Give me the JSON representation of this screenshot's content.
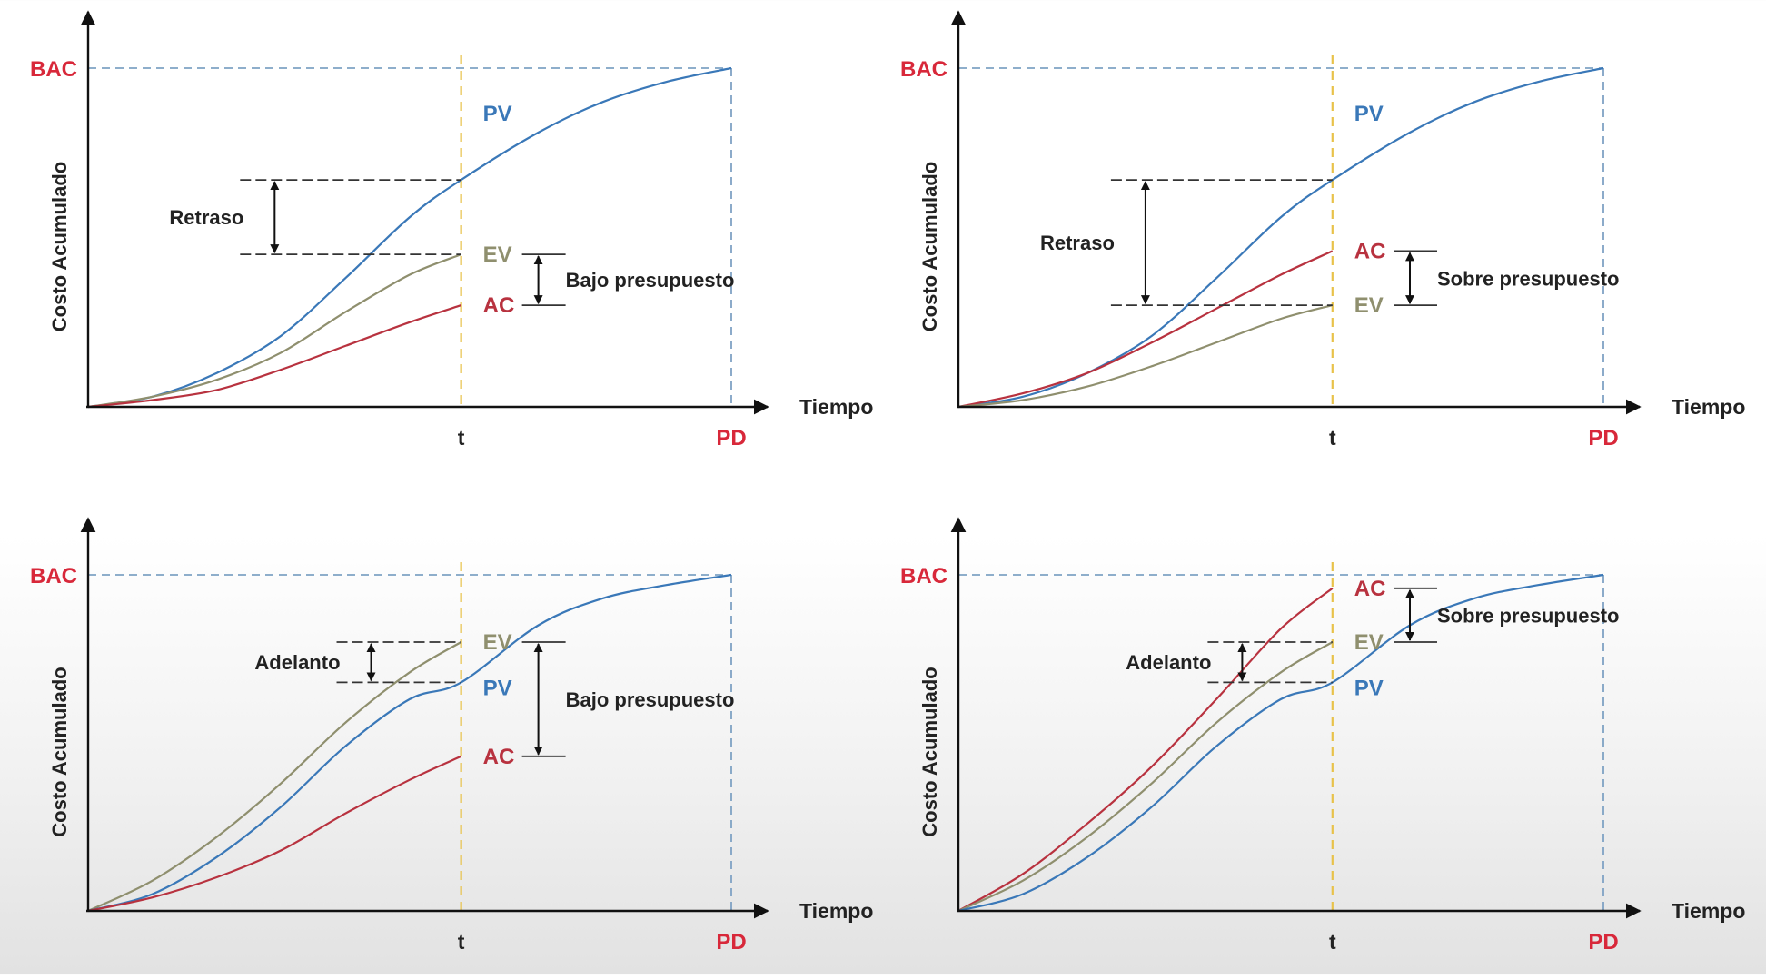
{
  "colors": {
    "pv": "#3a78b8",
    "ev": "#8f8f6e",
    "ac": "#b8323f",
    "bac_label": "#d8283a",
    "pd_label": "#d8283a",
    "status_line": "#e8c24a",
    "reference_line": "#7fa2c4",
    "axis": "#111111",
    "annotation": "#333333"
  },
  "icons": {
    "axis_arrow": "arrow-head-icon",
    "dimension_arrow": "double-arrow-icon"
  },
  "chart_data": [
    {
      "type": "line",
      "ylabel": "Costo Acumulado",
      "xlabel": "Tiempo",
      "y_ref_label": "BAC",
      "x_status_label": "t",
      "x_end_label": "PD",
      "xlim": [
        0,
        1
      ],
      "ylim": [
        0,
        1
      ],
      "status_x": 0.58,
      "series": [
        {
          "name": "PV",
          "x": [
            0,
            0.1,
            0.2,
            0.3,
            0.4,
            0.5,
            0.58,
            0.7,
            0.8,
            0.9,
            1.0
          ],
          "values": [
            0,
            0.03,
            0.1,
            0.21,
            0.38,
            0.56,
            0.67,
            0.81,
            0.9,
            0.96,
            1.0
          ]
        },
        {
          "name": "EV",
          "x": [
            0,
            0.1,
            0.2,
            0.3,
            0.4,
            0.5,
            0.58
          ],
          "values": [
            0,
            0.03,
            0.08,
            0.16,
            0.28,
            0.39,
            0.45
          ]
        },
        {
          "name": "AC",
          "x": [
            0,
            0.1,
            0.2,
            0.3,
            0.4,
            0.5,
            0.58
          ],
          "values": [
            0,
            0.02,
            0.05,
            0.11,
            0.18,
            0.25,
            0.3
          ]
        }
      ],
      "annotations": [
        {
          "text": "Retraso",
          "from": 0.67,
          "to": 0.45,
          "side": "left",
          "position": 0.29
        },
        {
          "text": "Bajo presupuesto",
          "from": 0.45,
          "to": 0.3,
          "side": "right",
          "position": 0.7
        }
      ]
    },
    {
      "type": "line",
      "ylabel": "Costo Acumulado",
      "xlabel": "Tiempo",
      "y_ref_label": "BAC",
      "x_status_label": "t",
      "x_end_label": "PD",
      "xlim": [
        0,
        1
      ],
      "ylim": [
        0,
        1
      ],
      "status_x": 0.58,
      "series": [
        {
          "name": "PV",
          "x": [
            0,
            0.1,
            0.2,
            0.3,
            0.4,
            0.5,
            0.58,
            0.7,
            0.8,
            0.9,
            1.0
          ],
          "values": [
            0,
            0.03,
            0.1,
            0.21,
            0.38,
            0.56,
            0.67,
            0.81,
            0.9,
            0.96,
            1.0
          ]
        },
        {
          "name": "AC",
          "x": [
            0,
            0.1,
            0.2,
            0.3,
            0.4,
            0.5,
            0.58
          ],
          "values": [
            0,
            0.04,
            0.1,
            0.19,
            0.29,
            0.39,
            0.46
          ]
        },
        {
          "name": "EV",
          "x": [
            0,
            0.1,
            0.2,
            0.3,
            0.4,
            0.5,
            0.58
          ],
          "values": [
            0,
            0.02,
            0.06,
            0.12,
            0.19,
            0.26,
            0.3
          ]
        }
      ],
      "annotations": [
        {
          "text": "Retraso",
          "from": 0.67,
          "to": 0.3,
          "side": "left",
          "position": 0.29
        },
        {
          "text": "Sobre presupuesto",
          "from": 0.46,
          "to": 0.3,
          "side": "right",
          "position": 0.7
        }
      ]
    },
    {
      "type": "line",
      "ylabel": "Costo Acumulado",
      "xlabel": "Tiempo",
      "y_ref_label": "BAC",
      "x_status_label": "t",
      "x_end_label": "PD",
      "xlim": [
        0,
        1
      ],
      "ylim": [
        0,
        1
      ],
      "status_x": 0.58,
      "series": [
        {
          "name": "EV",
          "x": [
            0,
            0.1,
            0.2,
            0.3,
            0.4,
            0.5,
            0.58
          ],
          "values": [
            0,
            0.09,
            0.22,
            0.38,
            0.56,
            0.71,
            0.8
          ]
        },
        {
          "name": "PV",
          "x": [
            0,
            0.1,
            0.2,
            0.3,
            0.4,
            0.5,
            0.58,
            0.7,
            0.8,
            0.9,
            1.0
          ],
          "values": [
            0,
            0.05,
            0.16,
            0.31,
            0.49,
            0.63,
            0.68,
            0.85,
            0.93,
            0.97,
            1.0
          ]
        },
        {
          "name": "AC",
          "x": [
            0,
            0.1,
            0.2,
            0.3,
            0.4,
            0.5,
            0.58
          ],
          "values": [
            0,
            0.04,
            0.1,
            0.18,
            0.29,
            0.39,
            0.46
          ]
        }
      ],
      "annotations": [
        {
          "text": "Adelanto",
          "from": 0.8,
          "to": 0.68,
          "side": "left",
          "position": 0.44
        },
        {
          "text": "Bajo presupuesto",
          "from": 0.8,
          "to": 0.46,
          "side": "right",
          "position": 0.7
        }
      ]
    },
    {
      "type": "line",
      "ylabel": "Costo Acumulado",
      "xlabel": "Tiempo",
      "y_ref_label": "BAC",
      "x_status_label": "t",
      "x_end_label": "PD",
      "xlim": [
        0,
        1
      ],
      "ylim": [
        0,
        1
      ],
      "status_x": 0.58,
      "series": [
        {
          "name": "AC",
          "x": [
            0,
            0.1,
            0.2,
            0.3,
            0.4,
            0.5,
            0.58
          ],
          "values": [
            0,
            0.11,
            0.26,
            0.43,
            0.63,
            0.84,
            0.96
          ]
        },
        {
          "name": "EV",
          "x": [
            0,
            0.1,
            0.2,
            0.3,
            0.4,
            0.5,
            0.58
          ],
          "values": [
            0,
            0.09,
            0.22,
            0.38,
            0.56,
            0.71,
            0.8
          ]
        },
        {
          "name": "PV",
          "x": [
            0,
            0.1,
            0.2,
            0.3,
            0.4,
            0.5,
            0.58,
            0.7,
            0.8,
            0.9,
            1.0
          ],
          "values": [
            0,
            0.05,
            0.16,
            0.31,
            0.49,
            0.63,
            0.68,
            0.85,
            0.93,
            0.97,
            1.0
          ]
        }
      ],
      "annotations": [
        {
          "text": "Adelanto",
          "from": 0.8,
          "to": 0.68,
          "side": "left",
          "position": 0.44
        },
        {
          "text": "Sobre presupuesto",
          "from": 0.96,
          "to": 0.8,
          "side": "right",
          "position": 0.7
        }
      ]
    }
  ]
}
